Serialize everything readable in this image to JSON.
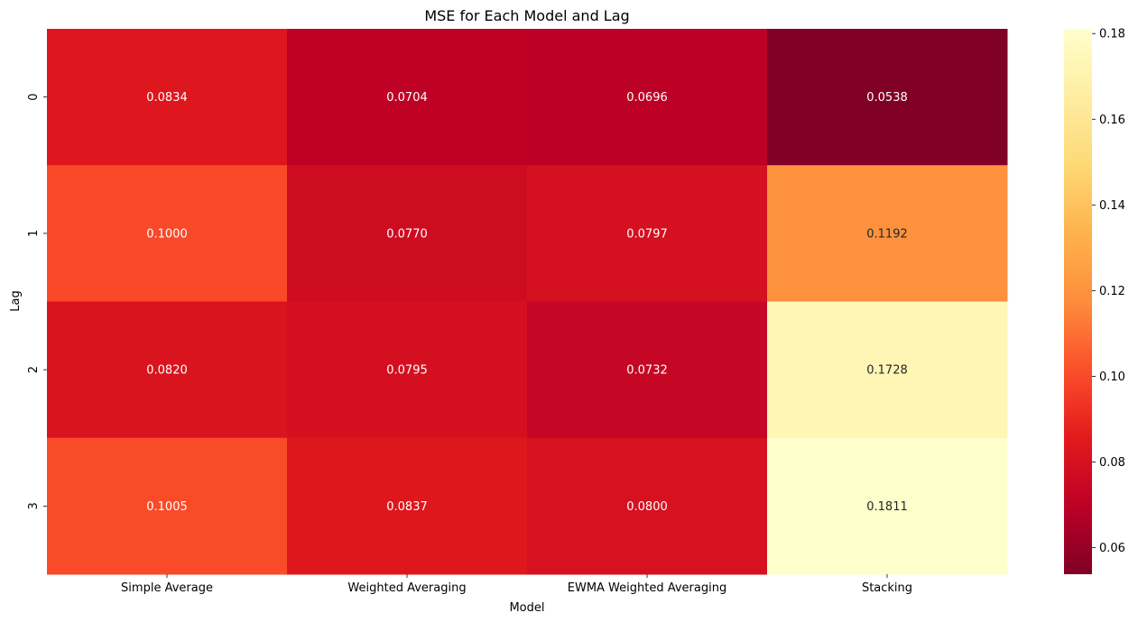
{
  "chart_data": {
    "type": "heatmap",
    "title": "MSE for Each Model and Lag",
    "xlabel": "Model",
    "ylabel": "Lag",
    "x_categories": [
      "Simple Average",
      "Weighted Averaging",
      "EWMA Weighted Averaging",
      "Stacking"
    ],
    "y_categories": [
      "0",
      "1",
      "2",
      "3"
    ],
    "values": [
      [
        0.0834,
        0.0704,
        0.0696,
        0.0538
      ],
      [
        0.1,
        0.077,
        0.0797,
        0.1192
      ],
      [
        0.082,
        0.0795,
        0.0732,
        0.1728
      ],
      [
        0.1005,
        0.0837,
        0.08,
        0.1811
      ]
    ],
    "cell_labels": [
      [
        "0.0834",
        "0.0704",
        "0.0696",
        "0.0538"
      ],
      [
        "0.1000",
        "0.0770",
        "0.0797",
        "0.1192"
      ],
      [
        "0.0820",
        "0.0795",
        "0.0732",
        "0.1728"
      ],
      [
        "0.1005",
        "0.0837",
        "0.0800",
        "0.1811"
      ]
    ],
    "colormap": "YlOrRd_r",
    "vmin": 0.0538,
    "vmax": 0.1811,
    "colorbar": {
      "ticks": [
        0.06,
        0.08,
        0.1,
        0.12,
        0.14,
        0.16,
        0.18
      ],
      "tick_labels": [
        "0.06",
        "0.08",
        "0.10",
        "0.12",
        "0.14",
        "0.16",
        "0.18"
      ]
    },
    "grid": false,
    "legend": "colorbar-right"
  }
}
